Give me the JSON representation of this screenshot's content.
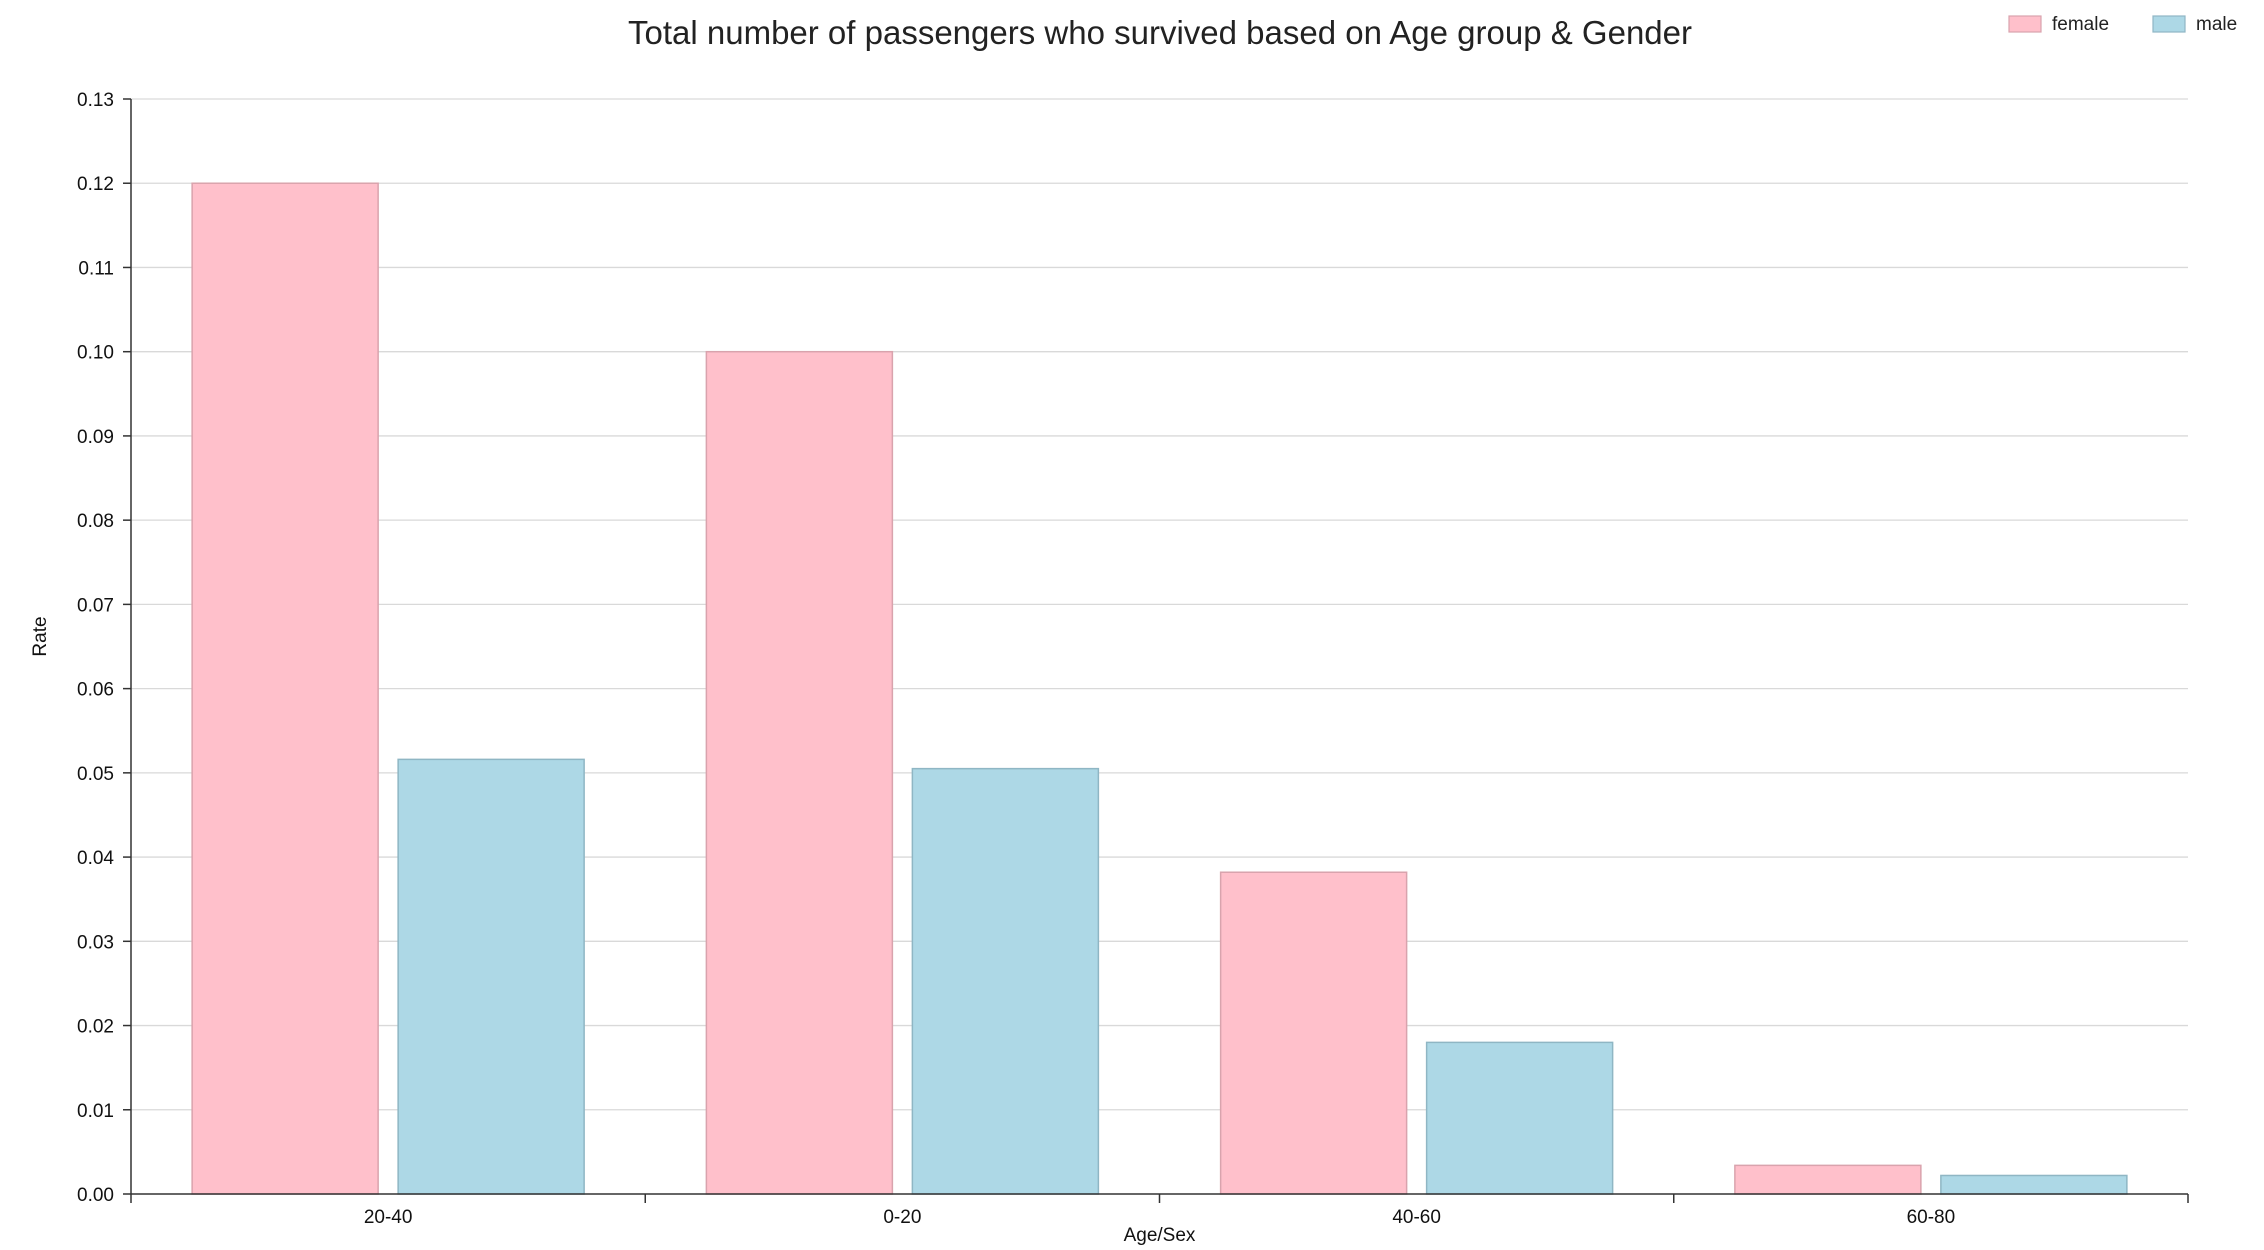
{
  "chart_data": {
    "type": "bar",
    "title": "Total number of passengers who survived based on Age group & Gender",
    "xlabel": "Age/Sex",
    "ylabel": "Rate",
    "categories": [
      "20-40",
      "0-20",
      "40-60",
      "60-80"
    ],
    "series": [
      {
        "name": "female",
        "color": "#ffc0cb",
        "stroke": "#d9a3ad",
        "values": [
          0.12,
          0.1,
          0.0382,
          0.0034
        ]
      },
      {
        "name": "male",
        "color": "#add8e6",
        "stroke": "#8fb6c4",
        "values": [
          0.0516,
          0.0505,
          0.018,
          0.0022
        ]
      }
    ],
    "ylim": [
      0,
      0.13
    ],
    "yticks": [
      "0.00",
      "0.01",
      "0.02",
      "0.03",
      "0.04",
      "0.05",
      "0.06",
      "0.07",
      "0.08",
      "0.09",
      "0.10",
      "0.11",
      "0.12",
      "0.13"
    ],
    "grid": true,
    "legend_position": "top-right"
  }
}
